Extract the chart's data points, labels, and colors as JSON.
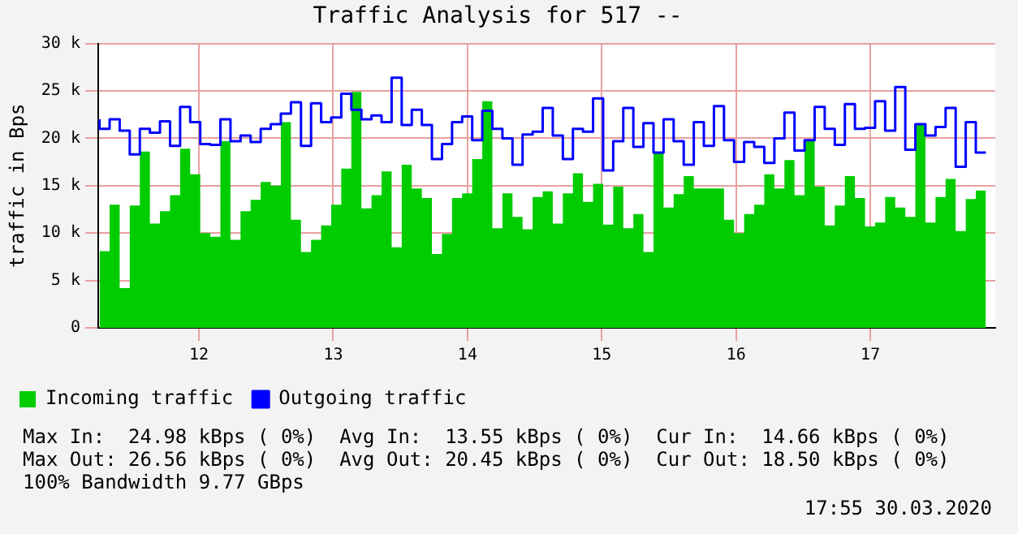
{
  "chart_data": {
    "type": "step",
    "title": "Traffic Analysis for 517 --",
    "ylabel": "traffic in Bps",
    "x": [
      11.26,
      11.335,
      11.41,
      11.485,
      11.56,
      11.635,
      11.71,
      11.785,
      11.86,
      11.935,
      12.01,
      12.085,
      12.16,
      12.235,
      12.31,
      12.385,
      12.46,
      12.535,
      12.61,
      12.685,
      12.76,
      12.835,
      12.91,
      12.985,
      13.06,
      13.135,
      13.21,
      13.285,
      13.36,
      13.435,
      13.51,
      13.585,
      13.66,
      13.735,
      13.81,
      13.885,
      13.96,
      14.035,
      14.11,
      14.185,
      14.26,
      14.335,
      14.41,
      14.485,
      14.56,
      14.635,
      14.71,
      14.785,
      14.86,
      14.935,
      15.01,
      15.085,
      15.16,
      15.235,
      15.31,
      15.385,
      15.46,
      15.535,
      15.61,
      15.685,
      15.76,
      15.835,
      15.91,
      15.985,
      16.06,
      16.135,
      16.21,
      16.285,
      16.36,
      16.435,
      16.51,
      16.585,
      16.66,
      16.735,
      16.81,
      16.885,
      16.96,
      17.035,
      17.11,
      17.185,
      17.26,
      17.335,
      17.41,
      17.485,
      17.56,
      17.635,
      17.71,
      17.785,
      17.86
    ],
    "series": [
      {
        "name": "Incoming traffic",
        "type": "area",
        "color": "#00cc00",
        "values": [
          14000,
          8100,
          13000,
          4200,
          12900,
          18600,
          11000,
          12300,
          14000,
          18900,
          16200,
          10000,
          9600,
          19700,
          9300,
          12300,
          13500,
          15400,
          15000,
          21700,
          11400,
          8000,
          9300,
          10800,
          13000,
          16800,
          24900,
          12600,
          14000,
          16500,
          8500,
          17200,
          14700,
          13700,
          7800,
          9900,
          13700,
          14200,
          17800,
          23900,
          10500,
          14200,
          11700,
          10400,
          13800,
          14400,
          11000,
          14200,
          16300,
          13300,
          15200,
          10900,
          14900,
          10500,
          12000,
          8000,
          18400,
          12700,
          14100,
          16000,
          14700,
          14700,
          14700,
          11400,
          10000,
          12000,
          13000,
          16200,
          14700,
          17700,
          14000,
          19800,
          14900,
          10800,
          12900,
          16000,
          13700,
          10700,
          11100,
          13800,
          12700,
          11700,
          21500,
          11100,
          13800,
          15700,
          10200,
          13600,
          14500
        ]
      },
      {
        "name": "Outgoing traffic",
        "color": "#0000ff",
        "values": [
          22000,
          21000,
          22000,
          20800,
          18300,
          21000,
          20600,
          21800,
          19200,
          23300,
          21700,
          19400,
          19300,
          22000,
          19700,
          20300,
          19600,
          21000,
          21500,
          22600,
          23800,
          19200,
          23700,
          21700,
          22200,
          24700,
          23000,
          22000,
          22400,
          21700,
          26400,
          21400,
          23000,
          21400,
          17800,
          19400,
          21700,
          22300,
          19800,
          22900,
          21000,
          20000,
          17200,
          20400,
          20700,
          23200,
          20300,
          17800,
          21000,
          20700,
          24200,
          16600,
          19700,
          23200,
          19100,
          21600,
          18500,
          22000,
          19700,
          17200,
          21700,
          19200,
          23400,
          19800,
          17500,
          19600,
          19100,
          17400,
          20000,
          22700,
          18700,
          19800,
          23300,
          21000,
          19300,
          23600,
          21000,
          21100,
          23900,
          20800,
          25400,
          18800,
          21500,
          20300,
          21200,
          23200,
          17000,
          21700,
          18500
        ]
      }
    ],
    "xlim": [
      11.25,
      17.93
    ],
    "xticks": [
      12,
      13,
      14,
      15,
      16,
      17
    ],
    "ylim": [
      0,
      30000
    ],
    "yticks": [
      {
        "value": 0,
        "label": "0"
      },
      {
        "value": 5000,
        "label": "5 k"
      },
      {
        "value": 10000,
        "label": "10 k"
      },
      {
        "value": 15000,
        "label": "15 k"
      },
      {
        "value": 20000,
        "label": "20 k"
      },
      {
        "value": 25000,
        "label": "25 k"
      },
      {
        "value": 30000,
        "label": "30 k"
      }
    ],
    "grid": true,
    "legend": "bottom",
    "annotations": [
      "Max In:  24.98 kBps ( 0%)  Avg In:  13.55 kBps ( 0%)  Cur In:  14.66 kBps ( 0%)",
      "Max Out: 26.56 kBps ( 0%)  Avg Out: 20.45 kBps ( 0%)  Cur Out: 18.50 kBps ( 0%)",
      "100% Bandwidth 9.77 GBps",
      "17:55 30.03.2020"
    ]
  }
}
